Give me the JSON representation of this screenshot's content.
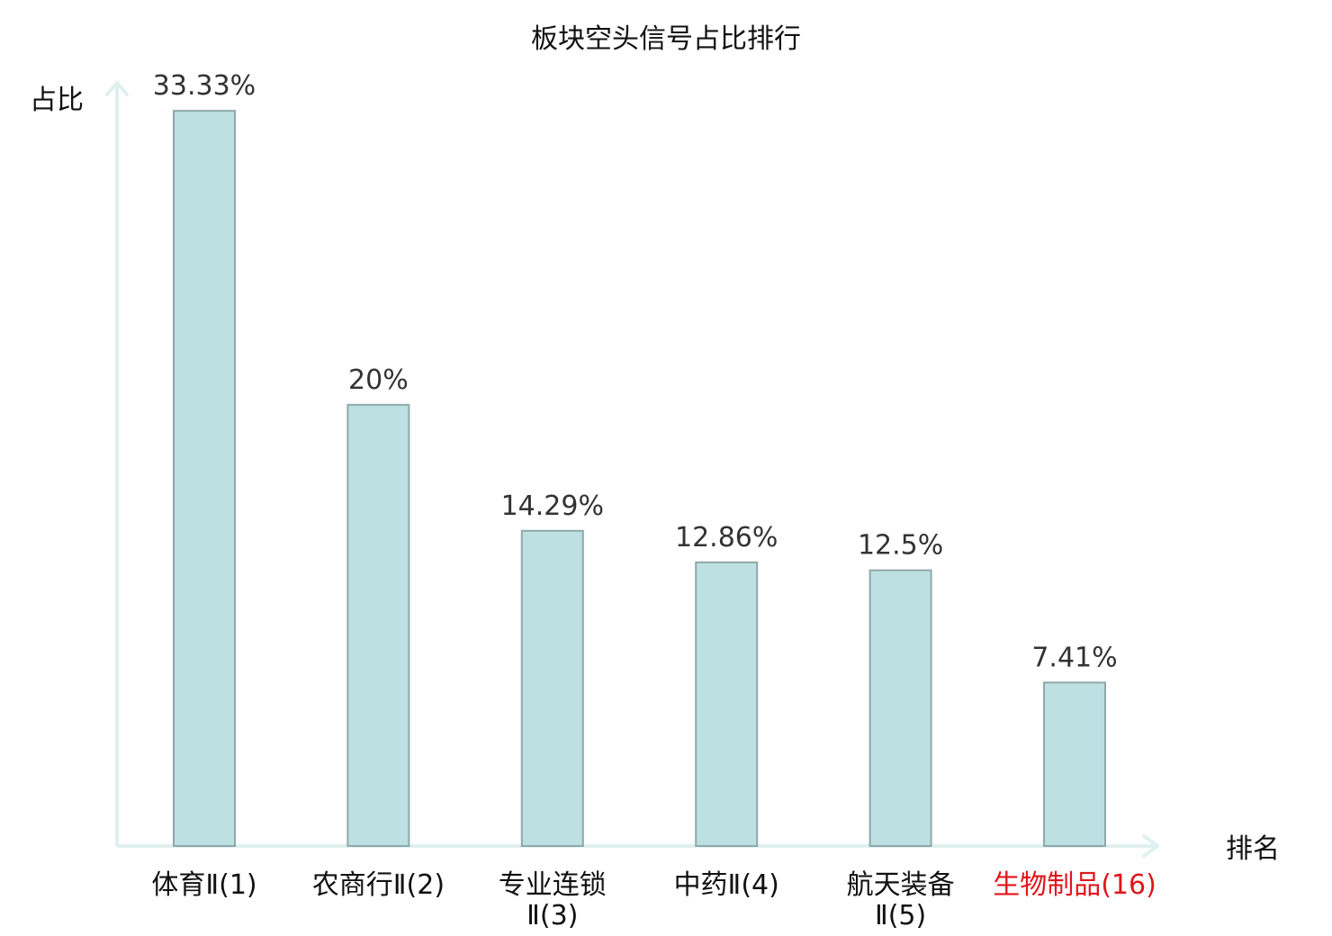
{
  "chart_data": {
    "type": "bar",
    "title": "板块空头信号占比排行",
    "ylabel": "占比",
    "xlabel": "排名",
    "ylim": [
      0,
      34.6
    ],
    "grid": false,
    "categories": [
      {
        "lines": [
          "体育Ⅱ(1)"
        ],
        "highlight": false
      },
      {
        "lines": [
          "农商行Ⅱ(2)"
        ],
        "highlight": false
      },
      {
        "lines": [
          "专业连锁",
          "Ⅱ(3)"
        ],
        "highlight": false
      },
      {
        "lines": [
          "中药Ⅱ(4)"
        ],
        "highlight": false
      },
      {
        "lines": [
          "航天装备",
          "Ⅱ(5)"
        ],
        "highlight": false
      },
      {
        "lines": [
          "生物制品(16)"
        ],
        "highlight": true
      }
    ],
    "values": [
      33.33,
      20,
      14.29,
      12.86,
      12.5,
      7.41
    ],
    "value_labels": [
      "33.33%",
      "20%",
      "14.29%",
      "12.86%",
      "12.5%",
      "7.41%"
    ],
    "colors": {
      "bar_fill": "#bde0e3",
      "bar_stroke": "#8fa8ab",
      "axis": "#dff0ee",
      "label": "#111111",
      "highlight": "#e0161b"
    }
  }
}
